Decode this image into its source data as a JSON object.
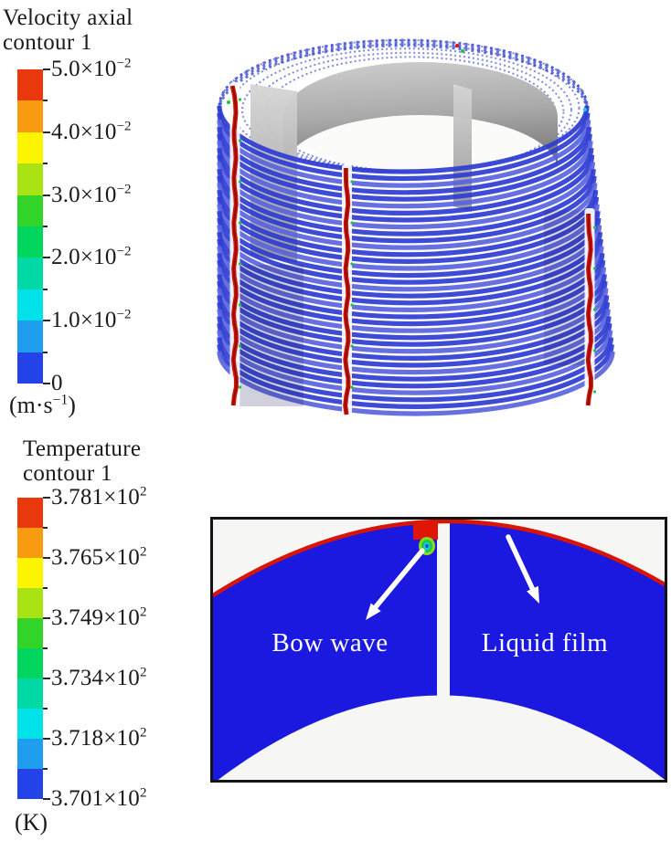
{
  "velocity_legend": {
    "title_line1": "Velocity axial",
    "title_line2": "contour 1",
    "ticks": [
      {
        "m": "5.0×10",
        "e": "−2"
      },
      {
        "m": "4.0×10",
        "e": "−2"
      },
      {
        "m": "3.0×10",
        "e": "−2"
      },
      {
        "m": "2.0×10",
        "e": "−2"
      },
      {
        "m": "1.0×10",
        "e": "−2"
      },
      {
        "m": "0",
        "e": ""
      }
    ],
    "unit_pre": "(m·s",
    "unit_exp": "−1",
    "unit_post": ")",
    "colors": [
      "#e8380c",
      "#f89b10",
      "#fdf500",
      "#a9e314",
      "#33d42a",
      "#00d55e",
      "#00d9a6",
      "#00e2e8",
      "#1f9ef0",
      "#2343e8"
    ]
  },
  "temperature_legend": {
    "title_line1": "Temperature",
    "title_line2": "contour 1",
    "ticks": [
      {
        "m": "3.781×10",
        "e": "2"
      },
      {
        "m": "3.765×10",
        "e": "2"
      },
      {
        "m": "3.749×10",
        "e": "2"
      },
      {
        "m": "3.734×10",
        "e": "2"
      },
      {
        "m": "3.718×10",
        "e": "2"
      },
      {
        "m": "3.701×10",
        "e": "2"
      }
    ],
    "unit_pre": "(K)",
    "unit_exp": "",
    "unit_post": "",
    "colors": [
      "#e8380c",
      "#f89b10",
      "#fdf500",
      "#a9e314",
      "#33d42a",
      "#00d55e",
      "#00d9a6",
      "#00e2e8",
      "#1f9ef0",
      "#2343e8"
    ]
  },
  "annotations": {
    "bow_wave": "Bow wave",
    "liquid_film": "Liquid film"
  },
  "chart_data": [
    {
      "type": "heatmap",
      "title": "Velocity axial contour 1",
      "variable": "axial velocity",
      "unit": "m·s⁻¹",
      "view": "3D drum with stacked helical liquid-film rings, cut-away showing gray inner wall",
      "range": [
        0,
        0.05
      ],
      "colorbar_tick_values": [
        0.05,
        0.04,
        0.03,
        0.02,
        0.01,
        0
      ],
      "colorbar_colors": [
        "#e8380c",
        "#f89b10",
        "#fdf500",
        "#a9e314",
        "#33d42a",
        "#00d55e",
        "#00d9a6",
        "#00e2e8",
        "#1f9ef0",
        "#2343e8"
      ],
      "features": [
        "film rings mostly near 0 m·s⁻¹ (blue)",
        "three vertical high axial-velocity (red) streaks at distributor slots"
      ]
    },
    {
      "type": "heatmap",
      "title": "Temperature contour 1",
      "variable": "temperature",
      "unit": "K",
      "view": "2D annular cross-section of the film with a vertical slot gap",
      "range": [
        370.1,
        378.1
      ],
      "colorbar_tick_values": [
        378.1,
        376.5,
        374.9,
        373.4,
        371.8,
        370.1
      ],
      "colorbar_colors": [
        "#e8380c",
        "#f89b10",
        "#fdf500",
        "#a9e314",
        "#33d42a",
        "#00d55e",
        "#00d9a6",
        "#00e2e8",
        "#1f9ef0",
        "#2343e8"
      ],
      "annotations": [
        "Bow wave",
        "Liquid film"
      ],
      "features": [
        "bulk liquid film ≈ 3.701×10² K (blue)",
        "thin hot layer ≈ 3.781×10² K (red) along outer rim",
        "bow-wave hot spot (green/cyan) beside the slot"
      ]
    }
  ]
}
